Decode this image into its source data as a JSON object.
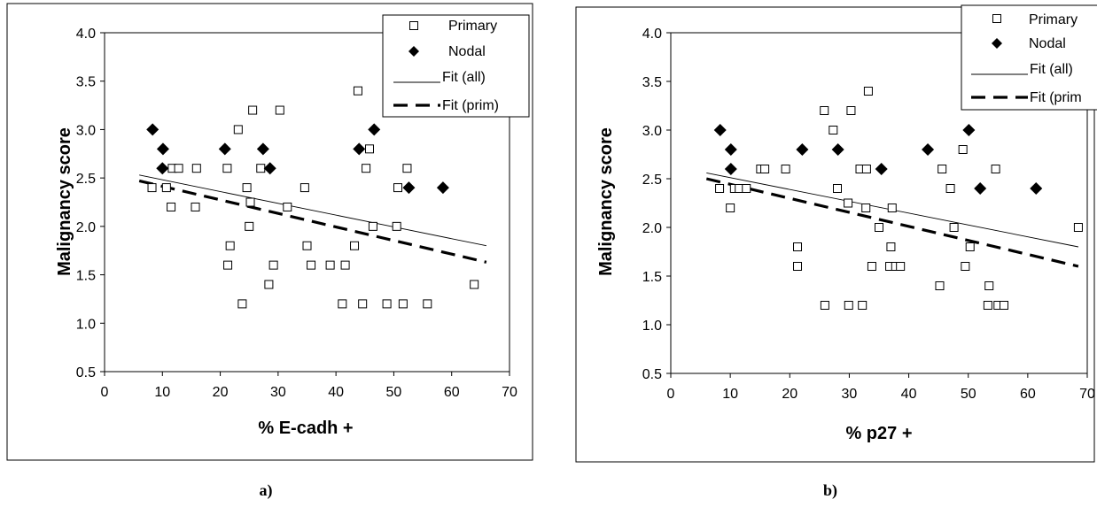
{
  "chart_data": [
    {
      "type": "scatter",
      "panel_label": "a)",
      "xlabel": "% E-cadh +",
      "ylabel": "Malignancy score",
      "xlim": [
        0,
        70
      ],
      "ylim": [
        0.5,
        4.0
      ],
      "x_ticks": [
        "0",
        "10",
        "20",
        "30",
        "40",
        "50",
        "60",
        "70"
      ],
      "y_ticks": [
        "0.5",
        "1.0",
        "1.5",
        "2.0",
        "2.5",
        "3.0",
        "3.5",
        "4.0"
      ],
      "grid": false,
      "legend_position": "top-right",
      "legend": [
        "Primary",
        "Nodal",
        "Fit (all)",
        "Fit (prim)"
      ],
      "series": [
        {
          "name": "Primary",
          "marker": "open-square",
          "points": [
            [
              8.2,
              2.4
            ],
            [
              10.7,
              2.4
            ],
            [
              11.5,
              2.2
            ],
            [
              11.7,
              2.6
            ],
            [
              12.8,
              2.6
            ],
            [
              15.7,
              2.2
            ],
            [
              15.9,
              2.6
            ],
            [
              21.2,
              2.6
            ],
            [
              21.3,
              1.6
            ],
            [
              21.7,
              1.8
            ],
            [
              23.1,
              3.0
            ],
            [
              23.8,
              1.2
            ],
            [
              24.6,
              2.4
            ],
            [
              25.2,
              2.25
            ],
            [
              25.0,
              2.0
            ],
            [
              25.6,
              3.2
            ],
            [
              27.0,
              2.6
            ],
            [
              28.4,
              1.4
            ],
            [
              29.2,
              1.6
            ],
            [
              30.3,
              3.2
            ],
            [
              31.6,
              2.2
            ],
            [
              34.6,
              2.4
            ],
            [
              35.0,
              1.8
            ],
            [
              35.7,
              1.6
            ],
            [
              39.0,
              1.6
            ],
            [
              41.1,
              1.2
            ],
            [
              41.6,
              1.6
            ],
            [
              43.2,
              1.8
            ],
            [
              43.8,
              3.4
            ],
            [
              44.6,
              1.2
            ],
            [
              45.2,
              2.6
            ],
            [
              45.8,
              2.8
            ],
            [
              46.4,
              2.0
            ],
            [
              48.8,
              1.2
            ],
            [
              50.5,
              2.0
            ],
            [
              50.7,
              2.4
            ],
            [
              51.6,
              1.2
            ],
            [
              52.3,
              2.6
            ],
            [
              55.8,
              1.2
            ],
            [
              63.9,
              1.4
            ]
          ]
        },
        {
          "name": "Nodal",
          "marker": "filled-diamond",
          "points": [
            [
              8.3,
              3.0
            ],
            [
              10.0,
              2.6
            ],
            [
              10.1,
              2.8
            ],
            [
              20.8,
              2.8
            ],
            [
              27.4,
              2.8
            ],
            [
              28.6,
              2.6
            ],
            [
              44.0,
              2.8
            ],
            [
              46.6,
              3.0
            ],
            [
              52.6,
              2.4
            ],
            [
              58.5,
              2.4
            ]
          ]
        },
        {
          "name": "Fit (all)",
          "line": "thin-solid",
          "from": [
            6,
            2.53
          ],
          "to": [
            66,
            1.8
          ]
        },
        {
          "name": "Fit (prim)",
          "line": "thick-dashed",
          "from": [
            6,
            2.47
          ],
          "to": [
            66,
            1.63
          ]
        }
      ]
    },
    {
      "type": "scatter",
      "panel_label": "b)",
      "xlabel": "% p27 +",
      "ylabel": "Malignancy score",
      "xlim": [
        0,
        70
      ],
      "ylim": [
        0.5,
        4.0
      ],
      "x_ticks": [
        "0",
        "10",
        "20",
        "30",
        "40",
        "50",
        "60",
        "70"
      ],
      "y_ticks": [
        "0.5",
        "1.0",
        "1.5",
        "2.0",
        "2.5",
        "3.0",
        "3.5",
        "4.0"
      ],
      "grid": false,
      "legend_position": "top-right",
      "legend": [
        "Primary",
        "Nodal",
        "Fit (all)",
        "Fit (prim"
      ],
      "series": [
        {
          "name": "Primary",
          "marker": "open-square",
          "points": [
            [
              8.2,
              2.4
            ],
            [
              10.0,
              2.2
            ],
            [
              10.7,
              2.4
            ],
            [
              11.5,
              2.4
            ],
            [
              12.7,
              2.4
            ],
            [
              15.1,
              2.6
            ],
            [
              15.8,
              2.6
            ],
            [
              19.3,
              2.6
            ],
            [
              21.3,
              1.8
            ],
            [
              21.3,
              1.6
            ],
            [
              25.8,
              3.2
            ],
            [
              25.9,
              1.2
            ],
            [
              27.3,
              3.0
            ],
            [
              28.0,
              2.4
            ],
            [
              29.8,
              2.25
            ],
            [
              29.9,
              1.2
            ],
            [
              30.3,
              3.2
            ],
            [
              31.8,
              2.6
            ],
            [
              32.2,
              1.2
            ],
            [
              32.8,
              2.2
            ],
            [
              32.9,
              2.6
            ],
            [
              33.2,
              3.4
            ],
            [
              33.8,
              1.6
            ],
            [
              35.0,
              2.0
            ],
            [
              36.8,
              1.6
            ],
            [
              37.0,
              1.8
            ],
            [
              37.2,
              2.2
            ],
            [
              37.8,
              1.6
            ],
            [
              38.6,
              1.6
            ],
            [
              45.2,
              1.4
            ],
            [
              45.6,
              2.6
            ],
            [
              47.0,
              2.4
            ],
            [
              47.6,
              2.0
            ],
            [
              49.1,
              2.8
            ],
            [
              49.5,
              1.6
            ],
            [
              50.3,
              1.8
            ],
            [
              53.3,
              1.2
            ],
            [
              53.5,
              1.4
            ],
            [
              54.6,
              2.6
            ],
            [
              55.0,
              1.2
            ],
            [
              56.0,
              1.2
            ],
            [
              68.5,
              2.0
            ]
          ]
        },
        {
          "name": "Nodal",
          "marker": "filled-diamond",
          "points": [
            [
              8.3,
              3.0
            ],
            [
              10.1,
              2.6
            ],
            [
              10.1,
              2.8
            ],
            [
              22.1,
              2.8
            ],
            [
              28.1,
              2.8
            ],
            [
              35.4,
              2.6
            ],
            [
              43.2,
              2.8
            ],
            [
              50.1,
              3.0
            ],
            [
              52.0,
              2.4
            ],
            [
              61.4,
              2.4
            ]
          ]
        },
        {
          "name": "Fit (all)",
          "line": "thin-solid",
          "from": [
            6,
            2.56
          ],
          "to": [
            68.5,
            1.8
          ]
        },
        {
          "name": "Fit (prim)",
          "line": "thick-dashed",
          "from": [
            6,
            2.5
          ],
          "to": [
            68.5,
            1.6
          ]
        }
      ]
    }
  ]
}
